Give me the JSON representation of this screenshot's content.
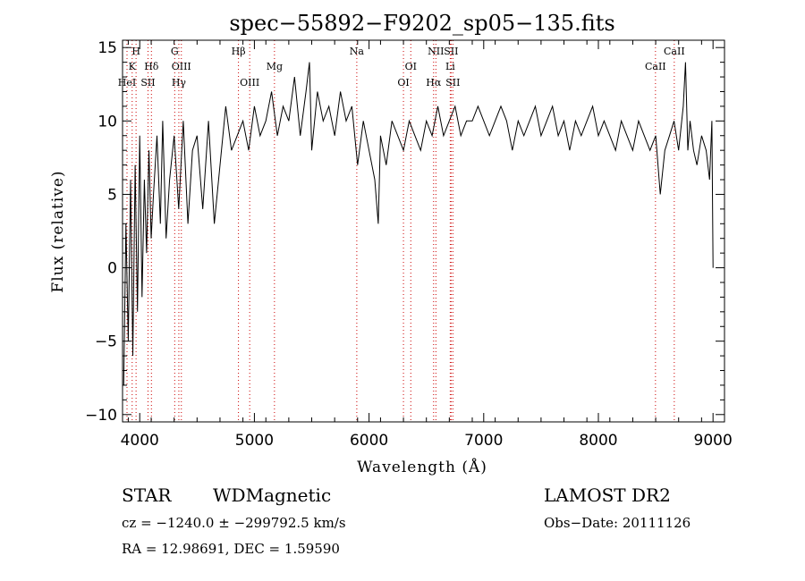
{
  "chart_data": {
    "type": "line",
    "title": "spec−55892−F9202_sp05−135.fits",
    "xlabel": "Wavelength (Å)",
    "ylabel": "Flux (relative)",
    "xlim": [
      3850,
      9100
    ],
    "ylim": [
      -10.5,
      15.5
    ],
    "xticks": [
      4000,
      5000,
      6000,
      7000,
      8000,
      9000
    ],
    "xtick_labels": [
      "4000",
      "5000",
      "6000",
      "7000",
      "8000",
      "9000"
    ],
    "yticks": [
      -10,
      -5,
      0,
      5,
      10,
      15
    ],
    "ytick_labels": [
      "−10",
      "−5",
      "0",
      "5",
      "10",
      "15"
    ],
    "grid": false,
    "line_color": "#000000",
    "marker_color": "#cc0000",
    "lines": [
      {
        "label": "H",
        "x": 3968,
        "row": 0
      },
      {
        "label": "K",
        "x": 3934,
        "row": 1
      },
      {
        "label": "Hδ",
        "x": 4102,
        "row": 1
      },
      {
        "label": "HeI",
        "x": 3889,
        "row": 2
      },
      {
        "label": "SII",
        "x": 4072,
        "row": 2
      },
      {
        "label": "G",
        "x": 4305,
        "row": 0
      },
      {
        "label": "OIII",
        "x": 4363,
        "row": 1
      },
      {
        "label": "Hγ",
        "x": 4341,
        "row": 2
      },
      {
        "label": "Hβ",
        "x": 4861,
        "row": 0
      },
      {
        "label": "Mg",
        "x": 5175,
        "row": 1
      },
      {
        "label": "OIII",
        "x": 4959,
        "row": 2
      },
      {
        "label": "Na",
        "x": 5893,
        "row": 0
      },
      {
        "label": "OI",
        "x": 6364,
        "row": 1
      },
      {
        "label": "OI",
        "x": 6300,
        "row": 2
      },
      {
        "label": "NII",
        "x": 6583,
        "row": 0
      },
      {
        "label": "SII",
        "x": 6716,
        "row": 0
      },
      {
        "label": "Li",
        "x": 6708,
        "row": 1
      },
      {
        "label": "Hα",
        "x": 6563,
        "row": 2
      },
      {
        "label": "SII",
        "x": 6731,
        "row": 2
      },
      {
        "label": "CaII",
        "x": 8662,
        "row": 0
      },
      {
        "label": "CaII",
        "x": 8498,
        "row": 1
      }
    ],
    "series": [
      {
        "x": [
          3860,
          3880,
          3900,
          3920,
          3940,
          3960,
          3980,
          4000,
          4020,
          4040,
          4060,
          4080,
          4100,
          4120,
          4150,
          4180,
          4200,
          4230,
          4260,
          4300,
          4340,
          4380,
          4420,
          4460,
          4500,
          4550,
          4600,
          4650,
          4700,
          4750,
          4800,
          4850,
          4900,
          4950,
          5000,
          5050,
          5100,
          5150,
          5200,
          5250,
          5300,
          5350,
          5400,
          5450,
          5480,
          5500,
          5550,
          5600,
          5650,
          5700,
          5750,
          5800,
          5850,
          5900,
          5950,
          6000,
          6050,
          6080,
          6100,
          6150,
          6200,
          6250,
          6300,
          6350,
          6400,
          6450,
          6500,
          6550,
          6600,
          6650,
          6700,
          6750,
          6800,
          6850,
          6900,
          6950,
          7000,
          7050,
          7100,
          7150,
          7200,
          7250,
          7300,
          7350,
          7400,
          7450,
          7500,
          7550,
          7600,
          7650,
          7700,
          7750,
          7800,
          7850,
          7900,
          7950,
          8000,
          8050,
          8100,
          8150,
          8200,
          8250,
          8300,
          8350,
          8400,
          8450,
          8500,
          8540,
          8580,
          8620,
          8660,
          8700,
          8740,
          8760,
          8780,
          8800,
          8830,
          8860,
          8900,
          8940,
          8970,
          8990,
          9000
        ],
        "y": [
          -8,
          3,
          -5,
          6,
          -6,
          7,
          -3,
          9,
          -2,
          6,
          1,
          8,
          2,
          5,
          9,
          3,
          10,
          2,
          6,
          9,
          4,
          10,
          3,
          8,
          9,
          4,
          10,
          3,
          7,
          11,
          8,
          9,
          10,
          8,
          11,
          9,
          10,
          12,
          9,
          11,
          10,
          13,
          9,
          12,
          14,
          8,
          12,
          10,
          11,
          9,
          12,
          10,
          11,
          7,
          10,
          8,
          6,
          3,
          9,
          7,
          10,
          9,
          8,
          10,
          9,
          8,
          10,
          9,
          11,
          9,
          10,
          11,
          9,
          10,
          10,
          11,
          10,
          9,
          10,
          11,
          10,
          8,
          10,
          9,
          10,
          11,
          9,
          10,
          11,
          9,
          10,
          8,
          10,
          9,
          10,
          11,
          9,
          10,
          9,
          8,
          10,
          9,
          8,
          10,
          9,
          8,
          9,
          5,
          8,
          9,
          10,
          8,
          11,
          14,
          8,
          10,
          8,
          7,
          9,
          8,
          6,
          10,
          0
        ]
      }
    ]
  },
  "info": {
    "class_label": "STAR",
    "subclass": "WDMagnetic",
    "survey": "LAMOST DR2",
    "cz": "cz = −1240.0 ± −299792.5 km/s",
    "obs_date": "Obs−Date: 20111126",
    "coords": "RA =  12.98691, DEC =   1.59590"
  }
}
